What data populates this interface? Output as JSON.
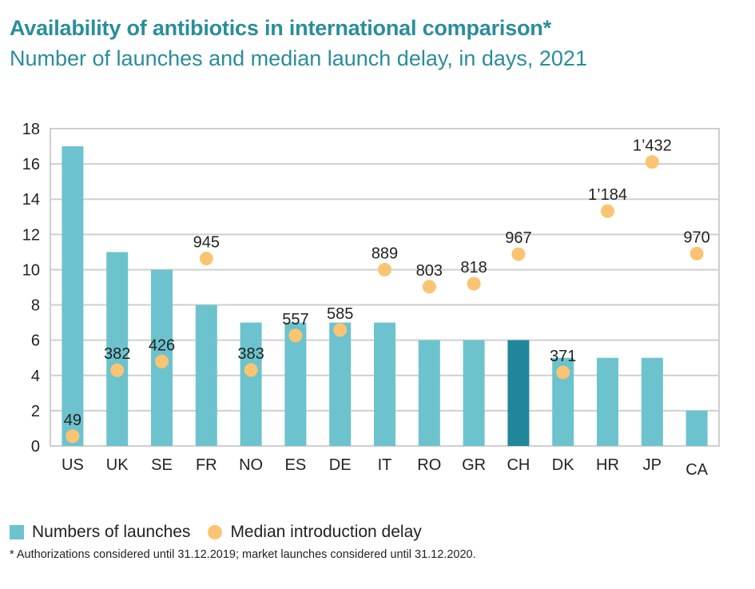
{
  "header": {
    "title": "Availability of antibiotics in international comparison*",
    "subtitle": "Number of launches and median launch delay, in days, 2021"
  },
  "chart_data": {
    "type": "bar",
    "title": "Availability of antibiotics in international comparison*",
    "subtitle": "Number of launches and median launch delay, in days, 2021",
    "categories": [
      "US",
      "UK",
      "SE",
      "FR",
      "NO",
      "ES",
      "DE",
      "IT",
      "RO",
      "GR",
      "CH",
      "DK",
      "HR",
      "JP",
      "CA"
    ],
    "ylim": [
      0,
      18
    ],
    "yticks": [
      "0",
      "2",
      "4",
      "6",
      "8",
      "10",
      "12",
      "14",
      "16",
      "18"
    ],
    "y2lim": [
      0,
      1600
    ],
    "grid": true,
    "legend_placement": "bottom-left",
    "highlight_category": "CH",
    "series": [
      {
        "name": "Numbers of launches",
        "type": "bar",
        "color": "#6cc3cd",
        "highlight_color": "#20879a",
        "values": [
          17,
          11,
          10,
          8,
          7,
          7,
          7,
          7,
          6,
          6,
          6,
          5,
          5,
          5,
          2
        ]
      },
      {
        "name": "Median introduction delay",
        "type": "scatter",
        "color": "#fbc472",
        "values": [
          49,
          382,
          426,
          945,
          383,
          557,
          585,
          889,
          803,
          818,
          967,
          371,
          1184,
          1432,
          970
        ],
        "labels": [
          "49",
          "382",
          "426",
          "945",
          "383",
          "557",
          "585",
          "889",
          "803",
          "818",
          "967",
          "371",
          "1’184",
          "1’432",
          "970"
        ]
      }
    ]
  },
  "legend": {
    "bars": "Numbers of launches",
    "dots": "Median introduction delay"
  },
  "footnote": "* Authorizations considered until 31.12.2019; market launches considered until 31.12.2020."
}
